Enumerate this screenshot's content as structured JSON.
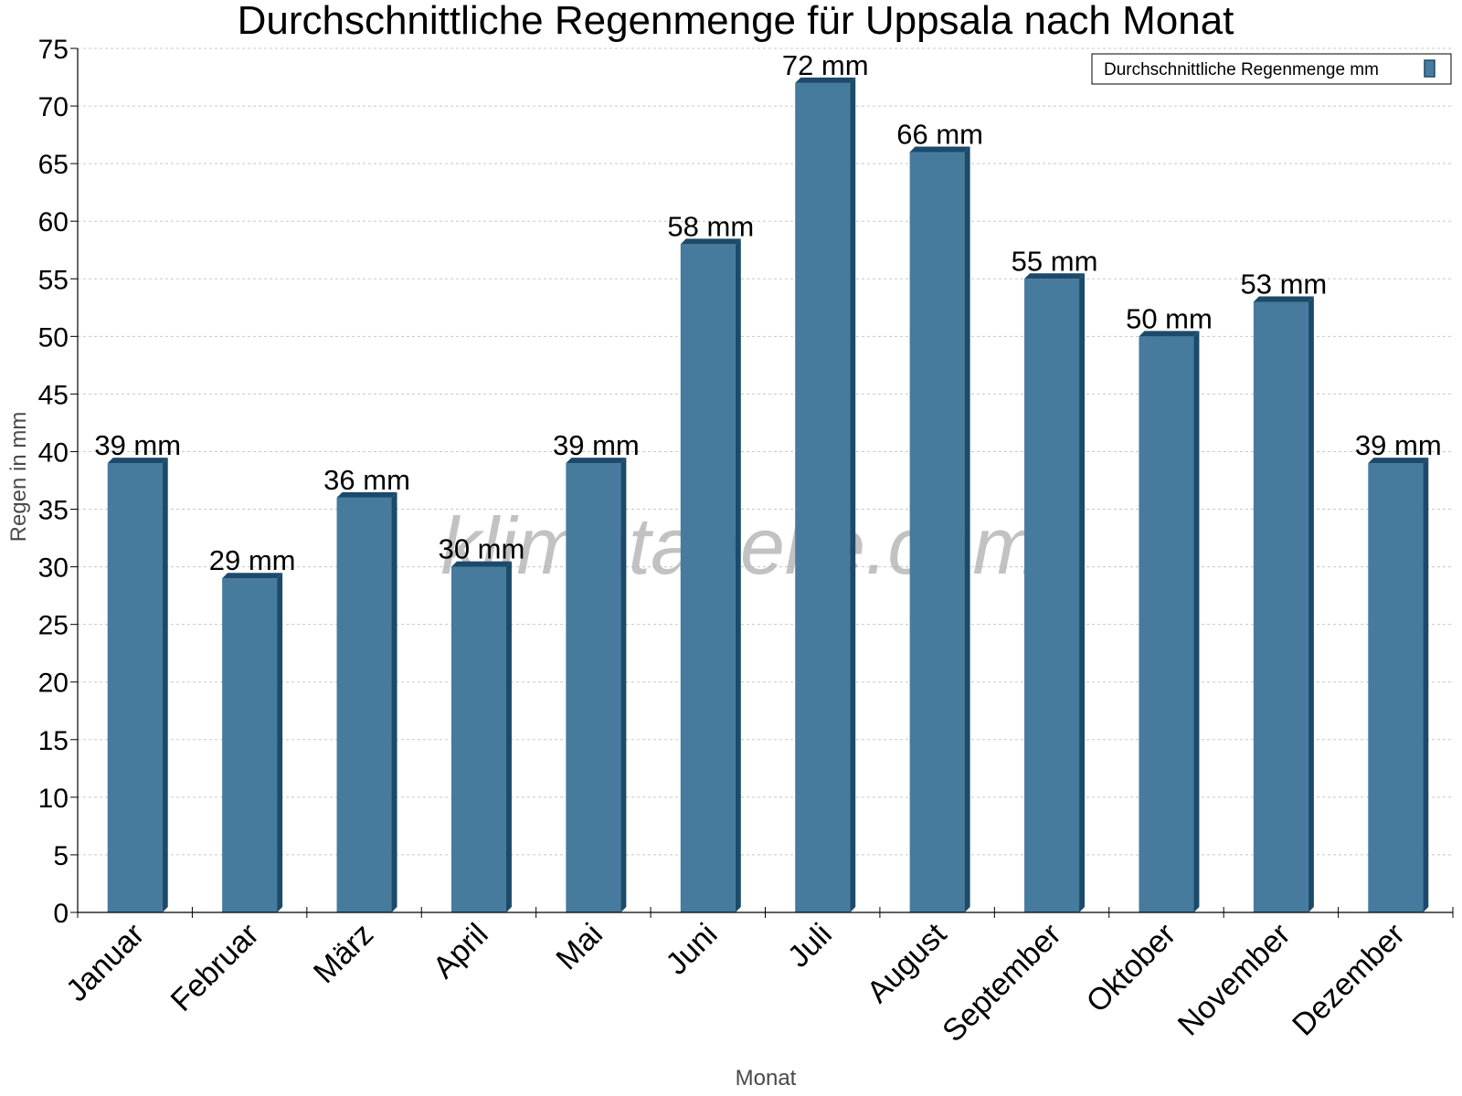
{
  "chart_data": {
    "type": "bar",
    "title": "Durchschnittliche Regenmenge für Uppsala nach Monat",
    "xlabel": "Monat",
    "ylabel": "Regen in mm",
    "categories": [
      "Januar",
      "Februar",
      "März",
      "April",
      "Mai",
      "Juni",
      "Juli",
      "August",
      "September",
      "Oktober",
      "November",
      "Dezember"
    ],
    "series": [
      {
        "name": "Durchschnittliche Regenmenge mm",
        "values": [
          39,
          29,
          36,
          30,
          39,
          58,
          72,
          66,
          55,
          50,
          53,
          39
        ],
        "color": "#467b9d",
        "dark_color": "#1c4a6a"
      }
    ],
    "value_labels": [
      "39 mm",
      "29 mm",
      "36 mm",
      "30 mm",
      "39 mm",
      "58 mm",
      "72 mm",
      "66 mm",
      "55 mm",
      "50 mm",
      "53 mm",
      "39 mm"
    ],
    "ylim": [
      0,
      75
    ],
    "yticks": [
      0,
      5,
      10,
      15,
      20,
      25,
      30,
      35,
      40,
      45,
      50,
      55,
      60,
      65,
      70,
      75
    ],
    "grid": true,
    "legend_position": "top-right",
    "watermark": "klimatabelle.com"
  }
}
